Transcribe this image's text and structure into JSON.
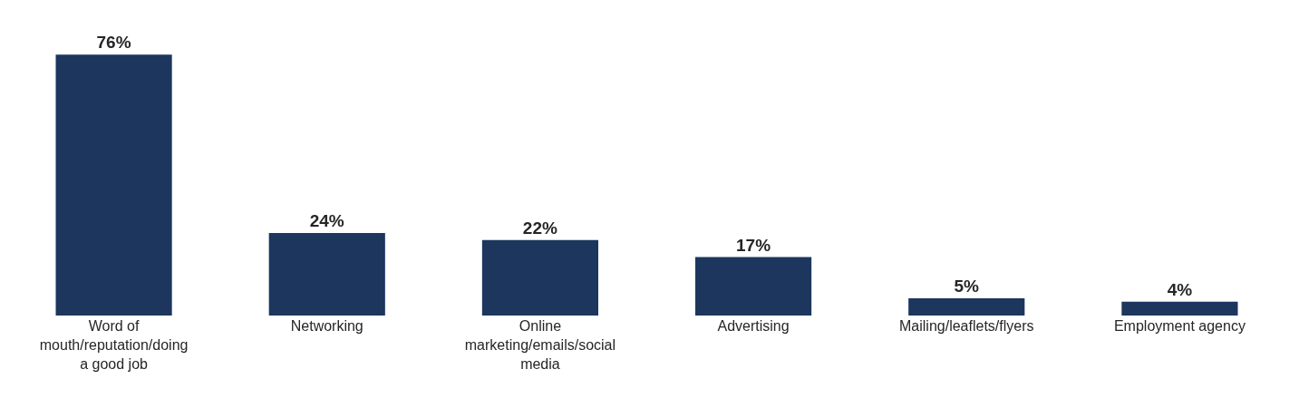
{
  "chart_data": {
    "type": "bar",
    "categories": [
      "Word of mouth/reputation/doing a good job",
      "Networking",
      "Online marketing/emails/social media",
      "Advertising",
      "Mailing/leaflets/flyers",
      "Employment agency"
    ],
    "values": [
      76,
      24,
      22,
      17,
      5,
      4
    ],
    "value_labels": [
      "76%",
      "24%",
      "22%",
      "17%",
      "5%",
      "4%"
    ],
    "color": "#1c365e"
  }
}
